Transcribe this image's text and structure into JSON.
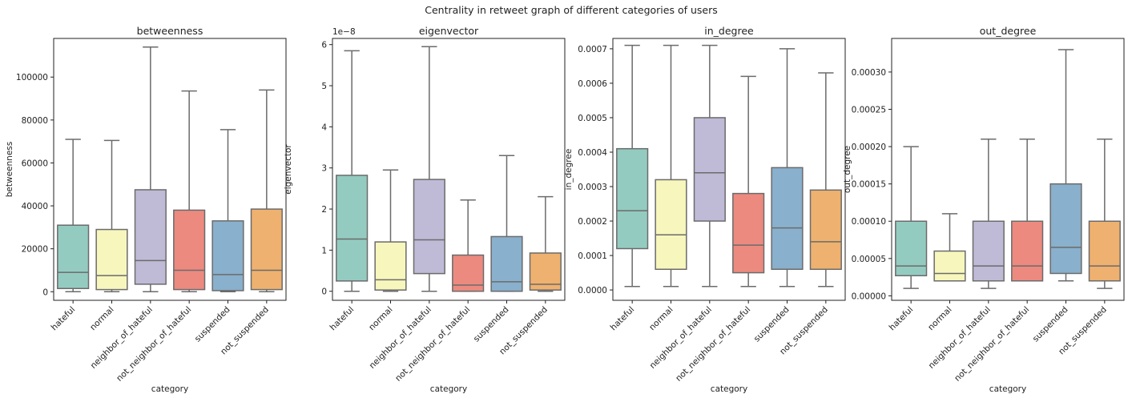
{
  "figure": {
    "title": "Centrality in retweet graph of different categories of users"
  },
  "chart_data": [
    {
      "type": "box",
      "title": "betweenness",
      "xlabel": "category",
      "ylabel": "betweenness",
      "offset_label": "",
      "ylim": [
        -4000,
        118000
      ],
      "yticks": [
        0,
        20000,
        40000,
        60000,
        80000,
        100000
      ],
      "ytick_labels": [
        "0",
        "20000",
        "40000",
        "60000",
        "80000",
        "100000"
      ],
      "categories": [
        "hateful",
        "normal",
        "neighbor_of_hateful",
        "not_neighbor_of_hateful",
        "suspended",
        "not_suspended"
      ],
      "boxes": [
        {
          "whisker_low": 0,
          "q1": 1500,
          "median": 9000,
          "q3": 31000,
          "whisker_high": 71000
        },
        {
          "whisker_low": 0,
          "q1": 1000,
          "median": 7500,
          "q3": 29000,
          "whisker_high": 70500
        },
        {
          "whisker_low": 0,
          "q1": 3500,
          "median": 14500,
          "q3": 47500,
          "whisker_high": 114000
        },
        {
          "whisker_low": 0,
          "q1": 1000,
          "median": 10000,
          "q3": 38000,
          "whisker_high": 93500
        },
        {
          "whisker_low": 0,
          "q1": 500,
          "median": 8000,
          "q3": 33000,
          "whisker_high": 75500
        },
        {
          "whisker_low": 0,
          "q1": 1000,
          "median": 10000,
          "q3": 38500,
          "whisker_high": 94000
        }
      ]
    },
    {
      "type": "box",
      "title": "eigenvector",
      "xlabel": "category",
      "ylabel": "eigenvector",
      "offset_label": "1e−8",
      "ylim": [
        -0.22,
        6.15
      ],
      "yticks": [
        0,
        1,
        2,
        3,
        4,
        5,
        6
      ],
      "ytick_labels": [
        "0",
        "1",
        "2",
        "3",
        "4",
        "5",
        "6"
      ],
      "categories": [
        "hateful",
        "normal",
        "neighbor_of_hateful",
        "not_neighbor_of_hateful",
        "suspended",
        "not_suspended"
      ],
      "boxes": [
        {
          "whisker_low": 0,
          "q1": 0.25,
          "median": 1.27,
          "q3": 2.82,
          "whisker_high": 5.85
        },
        {
          "whisker_low": 0,
          "q1": 0.03,
          "median": 0.28,
          "q3": 1.2,
          "whisker_high": 2.95
        },
        {
          "whisker_low": 0,
          "q1": 0.43,
          "median": 1.25,
          "q3": 2.72,
          "whisker_high": 5.95
        },
        {
          "whisker_low": 0,
          "q1": 0.0,
          "median": 0.15,
          "q3": 0.88,
          "whisker_high": 2.22
        },
        {
          "whisker_low": 0,
          "q1": 0.0,
          "median": 0.23,
          "q3": 1.33,
          "whisker_high": 3.3
        },
        {
          "whisker_low": 0,
          "q1": 0.03,
          "median": 0.17,
          "q3": 0.93,
          "whisker_high": 2.3
        }
      ]
    },
    {
      "type": "box",
      "title": "in_degree",
      "xlabel": "category",
      "ylabel": "in_degree",
      "offset_label": "",
      "ylim": [
        -3e-05,
        0.00073
      ],
      "yticks": [
        0,
        0.0001,
        0.0002,
        0.0003,
        0.0004,
        0.0005,
        0.0006,
        0.0007
      ],
      "ytick_labels": [
        "0.0000",
        "0.0001",
        "0.0002",
        "0.0003",
        "0.0004",
        "0.0005",
        "0.0006",
        "0.0007"
      ],
      "categories": [
        "hateful",
        "normal",
        "neighbor_of_hateful",
        "not_neighbor_of_hateful",
        "suspended",
        "not_suspended"
      ],
      "boxes": [
        {
          "whisker_low": 1e-05,
          "q1": 0.00012,
          "median": 0.00023,
          "q3": 0.00041,
          "whisker_high": 0.00071
        },
        {
          "whisker_low": 1e-05,
          "q1": 6e-05,
          "median": 0.00016,
          "q3": 0.00032,
          "whisker_high": 0.00071
        },
        {
          "whisker_low": 1e-05,
          "q1": 0.0002,
          "median": 0.00034,
          "q3": 0.0005,
          "whisker_high": 0.00071
        },
        {
          "whisker_low": 1e-05,
          "q1": 5e-05,
          "median": 0.00013,
          "q3": 0.00028,
          "whisker_high": 0.00062
        },
        {
          "whisker_low": 1e-05,
          "q1": 6e-05,
          "median": 0.00018,
          "q3": 0.000355,
          "whisker_high": 0.0007
        },
        {
          "whisker_low": 1e-05,
          "q1": 6e-05,
          "median": 0.00014,
          "q3": 0.00029,
          "whisker_high": 0.00063
        }
      ]
    },
    {
      "type": "box",
      "title": "out_degree",
      "xlabel": "category",
      "ylabel": "out_degree",
      "offset_label": "",
      "ylim": [
        -6e-06,
        0.000345
      ],
      "yticks": [
        0,
        5e-05,
        0.0001,
        0.00015,
        0.0002,
        0.00025,
        0.0003
      ],
      "ytick_labels": [
        "0.00000",
        "0.00005",
        "0.00010",
        "0.00015",
        "0.00020",
        "0.00025",
        "0.00030"
      ],
      "categories": [
        "hateful",
        "normal",
        "neighbor_of_hateful",
        "not_neighbor_of_hateful",
        "suspended",
        "not_suspended"
      ],
      "boxes": [
        {
          "whisker_low": 1e-05,
          "q1": 2.7e-05,
          "median": 4e-05,
          "q3": 0.0001,
          "whisker_high": 0.0002
        },
        {
          "whisker_low": 2e-05,
          "q1": 2e-05,
          "median": 3e-05,
          "q3": 6e-05,
          "whisker_high": 0.00011
        },
        {
          "whisker_low": 1e-05,
          "q1": 2e-05,
          "median": 4e-05,
          "q3": 0.0001,
          "whisker_high": 0.00021
        },
        {
          "whisker_low": 2e-05,
          "q1": 2e-05,
          "median": 4e-05,
          "q3": 0.0001,
          "whisker_high": 0.00021
        },
        {
          "whisker_low": 2e-05,
          "q1": 3e-05,
          "median": 6.5e-05,
          "q3": 0.00015,
          "whisker_high": 0.00033
        },
        {
          "whisker_low": 1e-05,
          "q1": 2e-05,
          "median": 4e-05,
          "q3": 0.0001,
          "whisker_high": 0.00021
        }
      ]
    }
  ],
  "colors": {
    "boxes": [
      "#94cbc0",
      "#f7f6bc",
      "#bfbad6",
      "#ec8a7f",
      "#89b0cc",
      "#eeb16f"
    ],
    "lines": "#6b6b6b",
    "axes": "#222222"
  }
}
